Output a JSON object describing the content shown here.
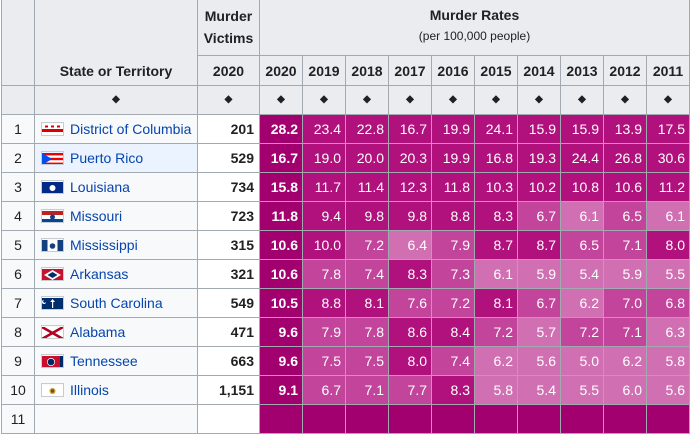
{
  "header": {
    "state_label": "State or Territory",
    "victims_label_line1": "Murder",
    "victims_label_line2": "Victims",
    "victims_year": "2020",
    "rates_label": "Murder Rates",
    "rates_sublabel": "(per 100,000 people)",
    "years": [
      "2020",
      "2019",
      "2018",
      "2017",
      "2016",
      "2015",
      "2014",
      "2013",
      "2012",
      "2011"
    ],
    "sort_glyph": "◆"
  },
  "colors": {
    "deepest": "#a2006f",
    "deep": "#b0117d",
    "mid": "#c2449b",
    "light": "#d070b2"
  },
  "rows": [
    {
      "rank": "1",
      "state": "District of Columbia",
      "flag": "dc-flag-icon",
      "victims": "201",
      "rates": [
        "28.2",
        "23.4",
        "22.8",
        "16.7",
        "19.9",
        "24.1",
        "15.9",
        "15.9",
        "13.9",
        "17.5"
      ]
    },
    {
      "rank": "2",
      "state": "Puerto Rico",
      "flag": "puerto-rico-flag-icon",
      "victims": "529",
      "rates": [
        "16.7",
        "19.0",
        "20.0",
        "20.3",
        "19.9",
        "16.8",
        "19.3",
        "24.4",
        "26.8",
        "30.6"
      ]
    },
    {
      "rank": "3",
      "state": "Louisiana",
      "flag": "louisiana-flag-icon",
      "victims": "734",
      "rates": [
        "15.8",
        "11.7",
        "11.4",
        "12.3",
        "11.8",
        "10.3",
        "10.2",
        "10.8",
        "10.6",
        "11.2"
      ]
    },
    {
      "rank": "4",
      "state": "Missouri",
      "flag": "missouri-flag-icon",
      "victims": "723",
      "rates": [
        "11.8",
        "9.4",
        "9.8",
        "9.8",
        "8.8",
        "8.3",
        "6.7",
        "6.1",
        "6.5",
        "6.1"
      ]
    },
    {
      "rank": "5",
      "state": "Mississippi",
      "flag": "mississippi-flag-icon",
      "victims": "315",
      "rates": [
        "10.6",
        "10.0",
        "7.2",
        "6.4",
        "7.9",
        "8.7",
        "8.7",
        "6.5",
        "7.1",
        "8.0"
      ]
    },
    {
      "rank": "6",
      "state": "Arkansas",
      "flag": "arkansas-flag-icon",
      "victims": "321",
      "rates": [
        "10.6",
        "7.8",
        "7.4",
        "8.3",
        "7.3",
        "6.1",
        "5.9",
        "5.4",
        "5.9",
        "5.5"
      ]
    },
    {
      "rank": "7",
      "state": "South Carolina",
      "flag": "south-carolina-flag-icon",
      "victims": "549",
      "rates": [
        "10.5",
        "8.8",
        "8.1",
        "7.6",
        "7.2",
        "8.1",
        "6.7",
        "6.2",
        "7.0",
        "6.8"
      ]
    },
    {
      "rank": "8",
      "state": "Alabama",
      "flag": "alabama-flag-icon",
      "victims": "471",
      "rates": [
        "9.6",
        "7.9",
        "7.8",
        "8.6",
        "8.4",
        "7.2",
        "5.7",
        "7.2",
        "7.1",
        "6.3"
      ]
    },
    {
      "rank": "9",
      "state": "Tennessee",
      "flag": "tennessee-flag-icon",
      "victims": "663",
      "rates": [
        "9.6",
        "7.5",
        "7.5",
        "8.0",
        "7.4",
        "6.2",
        "5.6",
        "5.0",
        "6.2",
        "5.8"
      ]
    },
    {
      "rank": "10",
      "state": "Illinois",
      "flag": "illinois-flag-icon",
      "victims": "1,151",
      "rates": [
        "9.1",
        "6.7",
        "7.1",
        "7.7",
        "8.3",
        "5.8",
        "5.4",
        "5.5",
        "6.0",
        "5.6"
      ]
    },
    {
      "rank": "11",
      "state": "",
      "flag": "",
      "victims": "",
      "rates": [
        "",
        "",
        "",
        "",
        "",
        "",
        "",
        "",
        "",
        ""
      ]
    }
  ]
}
